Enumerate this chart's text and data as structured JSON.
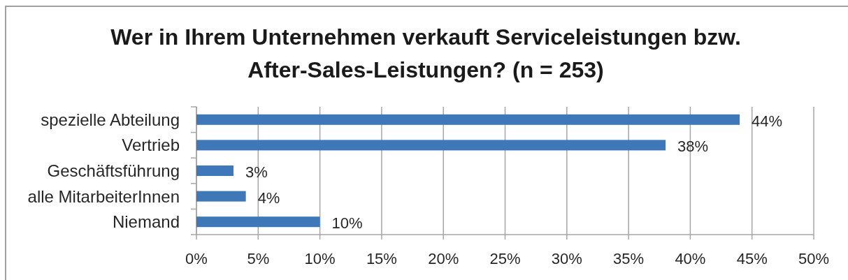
{
  "chart_data": {
    "type": "bar",
    "orientation": "horizontal",
    "title": "Wer in Ihrem Unternehmen verkauft Serviceleistungen bzw. After-Sales-Leistungen? (n = 253)",
    "categories": [
      "spezielle Abteilung",
      "Vertrieb",
      "Geschäftsführung",
      "alle MitarbeiterInnen",
      "Niemand"
    ],
    "values": [
      44,
      38,
      3,
      4,
      10
    ],
    "value_labels": [
      "44%",
      "38%",
      "3%",
      "4%",
      "10%"
    ],
    "color": "#3f78b9",
    "xlim": [
      0,
      50
    ],
    "xticks": [
      {
        "value": 0,
        "label": "0%"
      },
      {
        "value": 5,
        "label": "5%"
      },
      {
        "value": 10,
        "label": "10%"
      },
      {
        "value": 15,
        "label": "15%"
      },
      {
        "value": 20,
        "label": "20%"
      },
      {
        "value": 25,
        "label": "25%"
      },
      {
        "value": 30,
        "label": "30%"
      },
      {
        "value": 35,
        "label": "35%"
      },
      {
        "value": 40,
        "label": "40%"
      },
      {
        "value": 45,
        "label": "45%"
      },
      {
        "value": 50,
        "label": "50%"
      }
    ],
    "grid": "x"
  }
}
